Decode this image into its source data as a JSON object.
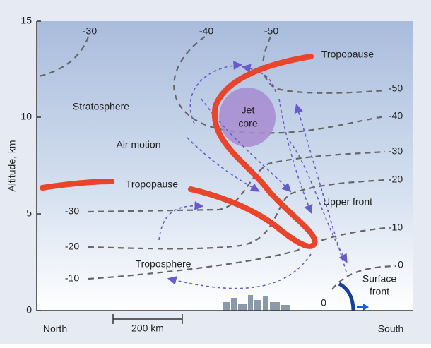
{
  "axis": {
    "title": "Altitude, km",
    "ticks": [
      0,
      5,
      10,
      15
    ]
  },
  "ends": {
    "left": "North",
    "right": "South"
  },
  "scale": "200 km",
  "isotherms": {
    "top": [
      "-30",
      "-40",
      "-50"
    ],
    "right": [
      "-50",
      "-40",
      "-30",
      "-20",
      "-10",
      "0"
    ],
    "left": [
      "-30",
      "-20",
      "-10"
    ],
    "surface": "0"
  },
  "labels": {
    "tropopause_upper": "Tropopause",
    "tropopause_lower": "Tropopause",
    "stratosphere": "Stratosphere",
    "jet_core": [
      "Jet",
      "core"
    ],
    "air_motion": "Air motion",
    "upper_front": "Upper front",
    "troposphere": "Troposphere",
    "surface_front": [
      "Surface",
      "front"
    ]
  }
}
